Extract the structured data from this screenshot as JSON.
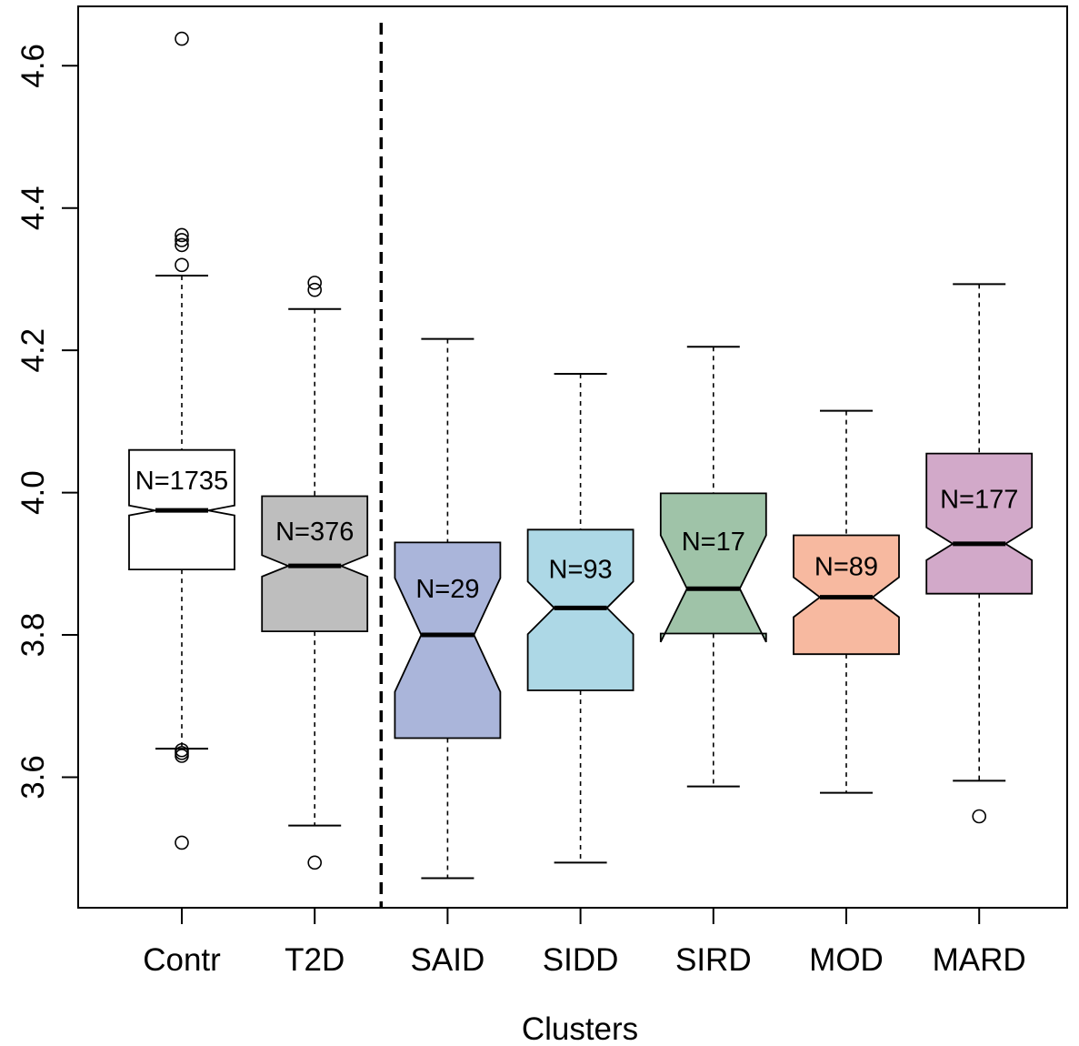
{
  "chart_data": {
    "type": "boxplot",
    "notched": true,
    "title": "",
    "xlabel": "Clusters",
    "ylabel": "",
    "ylim": [
      3.4165,
      4.6835
    ],
    "y_ticks": [
      "3.6",
      "3.8",
      "4.0",
      "4.2",
      "4.4",
      "4.6"
    ],
    "separator_after_index": 1,
    "groups": [
      {
        "label": "Contr",
        "n_label": "N=1735",
        "color": "#ffffff",
        "whisker_low": 3.64,
        "q1": 3.892,
        "median": 3.975,
        "q3": 4.06,
        "whisker_high": 4.305,
        "notch_low": 3.968,
        "notch_high": 3.982,
        "outliers": [
          4.638,
          4.362,
          4.355,
          4.348,
          4.32,
          3.638,
          3.634,
          3.63,
          3.508
        ]
      },
      {
        "label": "T2D",
        "n_label": "N=376",
        "color": "#bebebe",
        "whisker_low": 3.532,
        "q1": 3.805,
        "median": 3.897,
        "q3": 3.995,
        "whisker_high": 4.258,
        "notch_low": 3.882,
        "notch_high": 3.912,
        "outliers": [
          4.295,
          4.285,
          3.48
        ]
      },
      {
        "label": "SAID",
        "n_label": "N=29",
        "color": "#aab5da",
        "whisker_low": 3.458,
        "q1": 3.655,
        "median": 3.8,
        "q3": 3.93,
        "whisker_high": 4.216,
        "notch_low": 3.72,
        "notch_high": 3.88,
        "outliers": []
      },
      {
        "label": "SIDD",
        "n_label": "N=93",
        "color": "#add8e6",
        "whisker_low": 3.48,
        "q1": 3.722,
        "median": 3.838,
        "q3": 3.948,
        "whisker_high": 4.167,
        "notch_low": 3.801,
        "notch_high": 3.875,
        "outliers": []
      },
      {
        "label": "SIRD",
        "n_label": "N=17",
        "color": "#9fc3a8",
        "whisker_low": 3.587,
        "q1": 3.802,
        "median": 3.865,
        "q3": 3.999,
        "whisker_high": 4.205,
        "notch_low": 3.79,
        "notch_high": 3.94,
        "outliers": []
      },
      {
        "label": "MOD",
        "n_label": "N=89",
        "color": "#f7b9a0",
        "whisker_low": 3.578,
        "q1": 3.773,
        "median": 3.853,
        "q3": 3.94,
        "whisker_high": 4.115,
        "notch_low": 3.825,
        "notch_high": 3.881,
        "outliers": []
      },
      {
        "label": "MARD",
        "n_label": "N=177",
        "color": "#d2a9c9",
        "whisker_low": 3.595,
        "q1": 3.858,
        "median": 3.928,
        "q3": 4.055,
        "whisker_high": 4.293,
        "notch_low": 3.905,
        "notch_high": 3.951,
        "outliers": [
          3.545
        ]
      }
    ]
  }
}
